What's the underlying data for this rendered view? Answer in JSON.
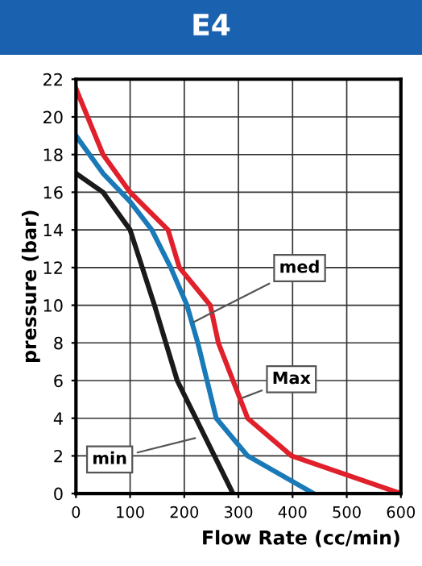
{
  "chart_data": {
    "type": "line",
    "title": "E4",
    "xlabel": "Flow Rate (cc/min)",
    "ylabel": "pressure (bar)",
    "xlim": [
      0,
      600
    ],
    "xticks": [
      0,
      100,
      200,
      300,
      400,
      500,
      600
    ],
    "ylim": [
      0,
      22
    ],
    "yticks": [
      0,
      2,
      4,
      6,
      8,
      10,
      12,
      14,
      16,
      18,
      20,
      22
    ],
    "grid": true,
    "marker": "none",
    "line_style": "solid",
    "series": [
      {
        "color": "#e0202a",
        "x": [
          0,
          50,
          100,
          170,
          191,
          248,
          263,
          317,
          398,
          600
        ],
        "values": [
          21.5,
          18,
          16,
          14,
          12,
          10,
          8,
          4,
          2,
          0
        ]
      },
      {
        "color": "#1a7ab8",
        "x": [
          0,
          50,
          100,
          140,
          175,
          205,
          225,
          259,
          317,
          439
        ],
        "values": [
          19,
          17,
          15.5,
          14,
          12,
          10,
          8,
          4,
          2,
          0
        ]
      },
      {
        "color": "#1a1a1a",
        "x": [
          0,
          50,
          100,
          145,
          187,
          290
        ],
        "values": [
          17,
          16,
          14,
          10,
          6,
          0
        ]
      }
    ],
    "annotations": [
      {
        "text": "med",
        "x": 210,
        "y": 9
      },
      {
        "text": "Max",
        "x": 300,
        "y": 5
      },
      {
        "text": "min",
        "x": 228,
        "y": 3
      }
    ]
  }
}
